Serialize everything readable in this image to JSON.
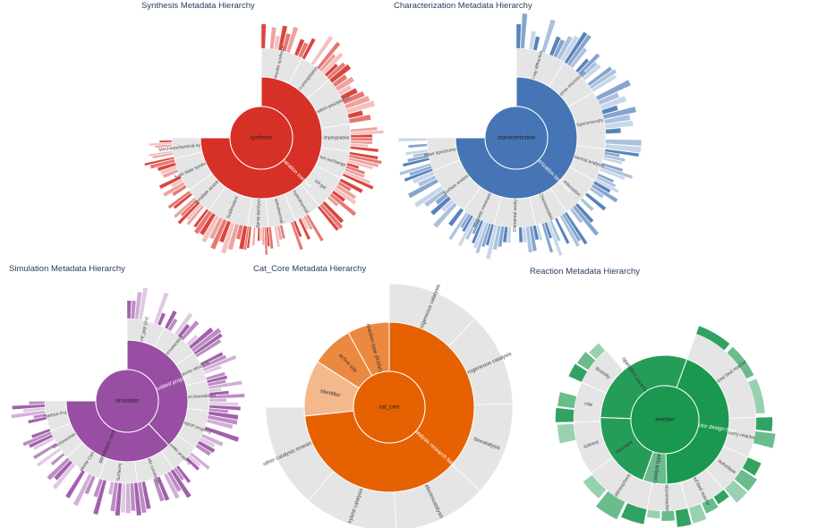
{
  "colors": {
    "synthesis": "#d73027",
    "characterization": "#4575b4",
    "simulation": "#984ea3",
    "cat_core": "#e66101",
    "reaction": "#1a9850",
    "neutral": "#e5e5e5"
  },
  "chart_data": [
    {
      "type": "sunburst",
      "title": "Synthesis Metadata Hierarchy",
      "root": "synthesis",
      "branches": [
        {
          "name": "preparation method",
          "value": 75
        }
      ],
      "outer_labels": [
        "Molecular synthesis",
        "co-precipitation",
        "deposition-precipitation",
        "impregnation",
        "Ion exchange",
        "sol-gel",
        "hydrothermal",
        "solvothermal",
        "Spray pyrolysis",
        "Sublimation",
        "Template assisted",
        "Solid state synthesis",
        "Mechanochemical synthesis"
      ],
      "outer_values": [
        6,
        5,
        7,
        4,
        4,
        5,
        4,
        4,
        3,
        6,
        4,
        5,
        3
      ]
    },
    {
      "type": "sunburst",
      "title": "Characterization Metadata Hierarchy",
      "root": "characterization",
      "branches": [
        {
          "name": "characterization technique",
          "value": 75
        }
      ],
      "outer_labels": [
        "X-ray diffraction",
        "Electron microscopy",
        "Spectroscopy",
        "Thermal analysis",
        "Adsorption",
        "Chemisorption",
        "Elemental analysis",
        "Magnetic measurement",
        "Surface analysis",
        "Mass spectrometry"
      ],
      "outer_values": [
        6,
        5,
        7,
        4,
        5,
        4,
        5,
        4,
        6,
        4
      ]
    },
    {
      "type": "sunburst",
      "title": "Simulation Metadata Hierarchy",
      "root": "simulation",
      "branches": [
        {
          "name": "calculated property",
          "value": 38
        },
        {
          "name": "simulation method",
          "value": 37
        }
      ],
      "outer_labels": [
        "band_gap (eV)",
        "Ferroelectrics",
        "Electronic structure",
        "Grain boundaries",
        "Transport property",
        "Magnetic property",
        "Elastic constants",
        "Surfaces",
        "Monte Carlo",
        "Micromechanics",
        "Hartree-Fock"
      ],
      "outer_values": [
        5,
        5,
        4,
        4,
        5,
        4,
        5,
        5,
        5,
        4,
        4
      ]
    },
    {
      "type": "sunburst",
      "title": "Cat_Core Metadata Hierarchy",
      "root": "cat_core",
      "branches": [
        {
          "name": "catalysis research field",
          "value": 55
        },
        {
          "name": "Identifier",
          "value": 8
        },
        {
          "name": "active site",
          "value": 6
        },
        {
          "name": "reaction type (RXNO)",
          "value": 6
        }
      ],
      "outer_labels": [
        "homogeneous catalysis",
        "heterogeneous catalysis",
        "biocatalysis",
        "electrocatalysis",
        "hybrid catalysis",
        "other catalysis research field"
      ],
      "outer_values": [
        9,
        9,
        9,
        9,
        9,
        10
      ]
    },
    {
      "type": "sunburst",
      "title": "Reaction Metadata Hierarchy",
      "root": "reaction",
      "branches": [
        {
          "name": "reactor design type",
          "value": 22
        },
        {
          "name": "catalyst type",
          "value": 3
        },
        {
          "name": "reactant",
          "value": 10
        },
        {
          "name": "operation parameters",
          "value": 15
        }
      ],
      "outer_labels": [
        "fluidized bed reactor",
        "slurry reactor",
        "autoclave",
        "fixed bed reactor",
        "microreactor",
        "atmosphere",
        "solvent",
        "role",
        "quantity"
      ],
      "outer_values": [
        8,
        3,
        3,
        3,
        3,
        5,
        4,
        3,
        3
      ]
    }
  ]
}
